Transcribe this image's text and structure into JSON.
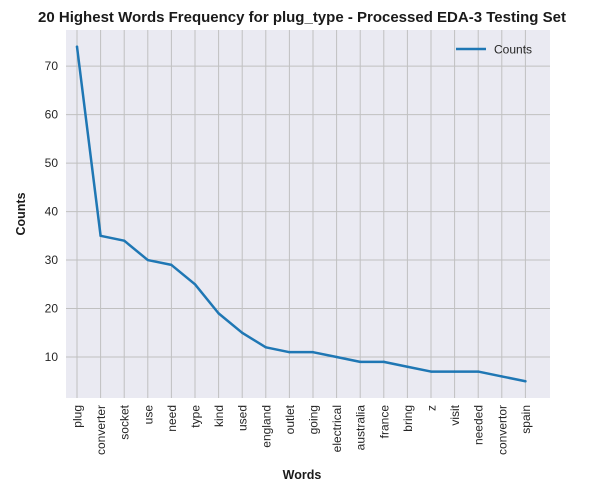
{
  "chart_data": {
    "type": "line",
    "title": "20 Highest Words Frequency for plug_type - Processed EDA-3 Testing Set",
    "xlabel": "Words",
    "ylabel": "Counts",
    "categories": [
      "plug",
      "converter",
      "socket",
      "use",
      "need",
      "type",
      "kind",
      "used",
      "england",
      "outlet",
      "going",
      "electrical",
      "australia",
      "france",
      "bring",
      "z",
      "visit",
      "needed",
      "convertor",
      "spain"
    ],
    "series": [
      {
        "name": "Counts",
        "values": [
          74,
          35,
          34,
          30,
          29,
          25,
          19,
          15,
          12,
          11,
          11,
          10,
          9,
          9,
          8,
          7,
          7,
          7,
          6,
          5
        ],
        "color": "#1f77b4"
      }
    ],
    "ylim": [
      1.55,
      77.45
    ],
    "yticks": [
      10,
      20,
      30,
      40,
      50,
      60,
      70
    ],
    "grid": true,
    "legend_position": "top-right",
    "background_color": "#eaeaf2",
    "grid_color": "#c0c0c0"
  }
}
